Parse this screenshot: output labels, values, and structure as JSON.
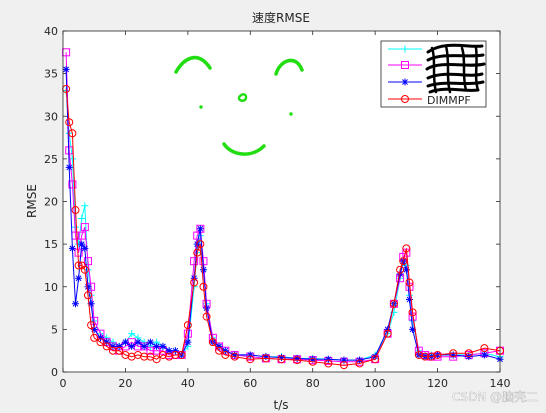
{
  "chart_data": {
    "type": "line",
    "title": "速度RMSE",
    "xlabel": "t/s",
    "ylabel": "RMSE",
    "xlim": [
      0,
      140
    ],
    "ylim": [
      0,
      40
    ],
    "xticks": [
      "0",
      "20",
      "40",
      "60",
      "80",
      "100",
      "120",
      "140"
    ],
    "yticks": [
      "0",
      "5",
      "10",
      "15",
      "20",
      "25",
      "30",
      "35",
      "40"
    ],
    "grid": false,
    "legend_position": "top-right",
    "legend_entries": [
      "",
      "",
      "",
      "DIMMPF"
    ],
    "series": [
      {
        "color": "#00ffff",
        "marker": "plus",
        "x": [
          1,
          2,
          3,
          4,
          5,
          6,
          7,
          8,
          9,
          10,
          12,
          14,
          16,
          18,
          20,
          22,
          24,
          26,
          28,
          30,
          32,
          34,
          36,
          38,
          40,
          42,
          43,
          44,
          45,
          46,
          48,
          50,
          52,
          55,
          60,
          65,
          70,
          75,
          80,
          85,
          90,
          95,
          100,
          104,
          106,
          108,
          109,
          110,
          111,
          112,
          114,
          116,
          118,
          120,
          125,
          130,
          135,
          140
        ],
        "y": [
          33,
          28,
          25,
          17,
          15,
          18,
          19.5,
          12,
          9,
          6,
          4.5,
          4,
          3.5,
          3,
          3.5,
          4.5,
          4,
          3.5,
          3,
          3.5,
          3,
          2.5,
          2.5,
          2,
          3,
          10,
          14,
          16,
          12,
          8,
          4,
          3,
          2.5,
          2,
          2,
          1.8,
          1.8,
          1.6,
          1.6,
          1.5,
          1.4,
          1.4,
          2,
          4.5,
          7,
          11,
          13,
          12.5,
          9,
          6,
          2.5,
          2,
          2,
          2,
          2,
          2,
          2.2,
          1.8
        ]
      },
      {
        "color": "#ff00ff",
        "marker": "square",
        "x": [
          1,
          2,
          3,
          4,
          5,
          6,
          7,
          8,
          9,
          10,
          12,
          14,
          16,
          18,
          20,
          22,
          24,
          26,
          28,
          30,
          32,
          34,
          36,
          38,
          40,
          42,
          43,
          44,
          45,
          46,
          48,
          50,
          52,
          55,
          60,
          65,
          70,
          75,
          80,
          85,
          90,
          95,
          100,
          104,
          106,
          108,
          109,
          110,
          111,
          112,
          114,
          116,
          118,
          120,
          125,
          130,
          135,
          140
        ],
        "y": [
          37.5,
          26,
          22,
          16,
          14,
          16,
          17,
          13,
          10,
          6,
          4.5,
          3.5,
          3,
          2.5,
          3,
          3.5,
          3,
          3,
          2.5,
          2.5,
          2.5,
          2,
          2,
          2,
          4.5,
          13,
          16,
          16.8,
          13,
          8,
          4,
          3,
          2.5,
          2,
          1.8,
          1.6,
          1.5,
          1.5,
          1.4,
          1.3,
          1.2,
          1.2,
          1.5,
          4.5,
          8,
          11,
          13.5,
          14,
          10,
          6.5,
          2.5,
          2,
          1.8,
          1.8,
          1.8,
          2,
          2.2,
          2.5
        ]
      },
      {
        "color": "#0000ff",
        "marker": "asterisk",
        "x": [
          1,
          2,
          3,
          4,
          5,
          6,
          7,
          8,
          9,
          10,
          12,
          14,
          16,
          18,
          20,
          22,
          24,
          26,
          28,
          30,
          32,
          34,
          36,
          38,
          40,
          42,
          43,
          44,
          45,
          46,
          48,
          50,
          52,
          55,
          60,
          65,
          70,
          75,
          80,
          85,
          90,
          95,
          100,
          104,
          106,
          108,
          109,
          110,
          111,
          112,
          114,
          116,
          118,
          120,
          125,
          130,
          135,
          140
        ],
        "y": [
          35.5,
          24,
          14.5,
          8,
          11,
          15,
          14.5,
          10,
          8,
          5,
          4,
          3.5,
          3,
          3,
          3.5,
          3,
          3.5,
          3,
          3.5,
          3,
          3,
          2.5,
          2.5,
          2,
          3.5,
          11,
          15,
          16.8,
          12,
          7.5,
          3.5,
          3,
          2.5,
          2,
          2,
          1.8,
          1.7,
          1.6,
          1.5,
          1.5,
          1.4,
          1.4,
          1.8,
          5,
          8,
          11.5,
          13,
          12,
          8.5,
          5,
          2,
          1.8,
          1.8,
          2,
          2,
          1.8,
          2,
          1.5
        ]
      },
      {
        "color": "#ff0000",
        "marker": "circle",
        "x": [
          1,
          2,
          3,
          4,
          5,
          6,
          7,
          8,
          9,
          10,
          12,
          14,
          16,
          18,
          20,
          22,
          24,
          26,
          28,
          30,
          32,
          34,
          36,
          38,
          40,
          42,
          43,
          44,
          45,
          46,
          48,
          50,
          52,
          55,
          60,
          65,
          70,
          75,
          80,
          85,
          90,
          95,
          100,
          104,
          106,
          108,
          109,
          110,
          111,
          112,
          114,
          116,
          118,
          120,
          125,
          130,
          135,
          140
        ],
        "y": [
          33.2,
          29.3,
          28,
          19,
          12.5,
          12.5,
          12,
          9,
          5.5,
          4,
          3.5,
          3,
          2.5,
          2.5,
          2,
          1.8,
          2,
          1.8,
          1.8,
          1.5,
          2,
          1.8,
          2,
          2,
          5.5,
          10.5,
          14,
          15,
          10,
          6.5,
          3.5,
          2.5,
          2,
          1.8,
          1.5,
          1.6,
          1.5,
          1.4,
          1.2,
          1.0,
          0.8,
          1.0,
          1.5,
          4.5,
          8,
          12,
          13,
          14.5,
          10.5,
          7,
          2,
          1.8,
          1.8,
          2,
          2.2,
          2.2,
          2.8,
          2.5
        ]
      }
    ]
  },
  "overlay_text": {
    "watermark": "CSDN @脑壳二"
  },
  "colors": {
    "figure_background": "#f0f0f0",
    "axes_background": "#ffffff",
    "doodle": "#22dd11",
    "legend_scribble": "#000000"
  }
}
